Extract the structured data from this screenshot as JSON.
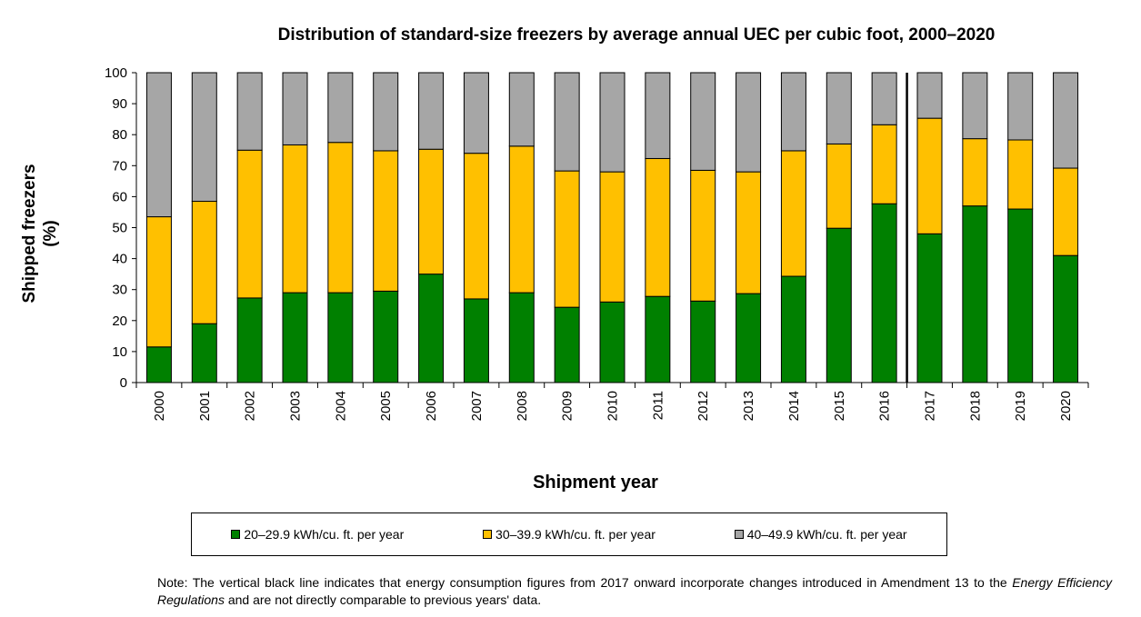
{
  "chart_data": {
    "type": "bar",
    "stacked": true,
    "title": "Distribution of standard-size freezers by average annual UEC per cubic foot, 2000–2020",
    "xlabel": "Shipment year",
    "ylabel_lines": [
      "Shipped freezers",
      "(%)"
    ],
    "ylim": [
      0,
      100
    ],
    "yticks": [
      0,
      10,
      20,
      30,
      40,
      50,
      60,
      70,
      80,
      90,
      100
    ],
    "grid": false,
    "legend_position": "bottom",
    "categories": [
      "2000",
      "2001",
      "2002",
      "2003",
      "2004",
      "2005",
      "2006",
      "2007",
      "2008",
      "2009",
      "2010",
      "2011",
      "2012",
      "2013",
      "2014",
      "2015",
      "2016",
      "2017",
      "2018",
      "2019",
      "2020"
    ],
    "series": [
      {
        "name": "20–29.9 kWh/cu. ft. per year",
        "color": "#008000",
        "values": [
          11.5,
          19,
          27.3,
          29,
          29,
          29.5,
          35,
          27,
          29,
          24.3,
          26,
          27.8,
          26.3,
          28.7,
          34.3,
          49.8,
          57.7,
          48,
          57,
          56,
          41
        ]
      },
      {
        "name": "30–39.9 kWh/cu. ft. per year",
        "color": "#ffc000",
        "values": [
          42,
          39.5,
          47.7,
          47.7,
          48.5,
          45.3,
          40.3,
          47,
          47.3,
          44,
          42,
          44.5,
          42.2,
          39.3,
          40.5,
          27.2,
          25.5,
          37.3,
          21.7,
          22.3,
          28.2
        ]
      },
      {
        "name": "40–49.9 kWh/cu. ft. per year",
        "color": "#a6a6a6",
        "values": [
          46.5,
          41.5,
          25,
          23.3,
          22.5,
          25.2,
          24.7,
          26,
          23.7,
          31.7,
          32,
          27.7,
          31.5,
          32,
          25.2,
          23,
          16.8,
          14.7,
          21.3,
          21.7,
          30.8
        ]
      }
    ],
    "annotations": [
      {
        "type": "vertical-line",
        "between": [
          "2016",
          "2017"
        ],
        "color": "#000000"
      }
    ]
  },
  "note": {
    "prefix": "Note: The vertical black line indicates that energy consumption figures from 2017 onward incorporate changes introduced in Amendment 13 to the ",
    "emphasis": "Energy Efficiency Regulations",
    "suffix": " and are not directly comparable to previous years' data."
  }
}
